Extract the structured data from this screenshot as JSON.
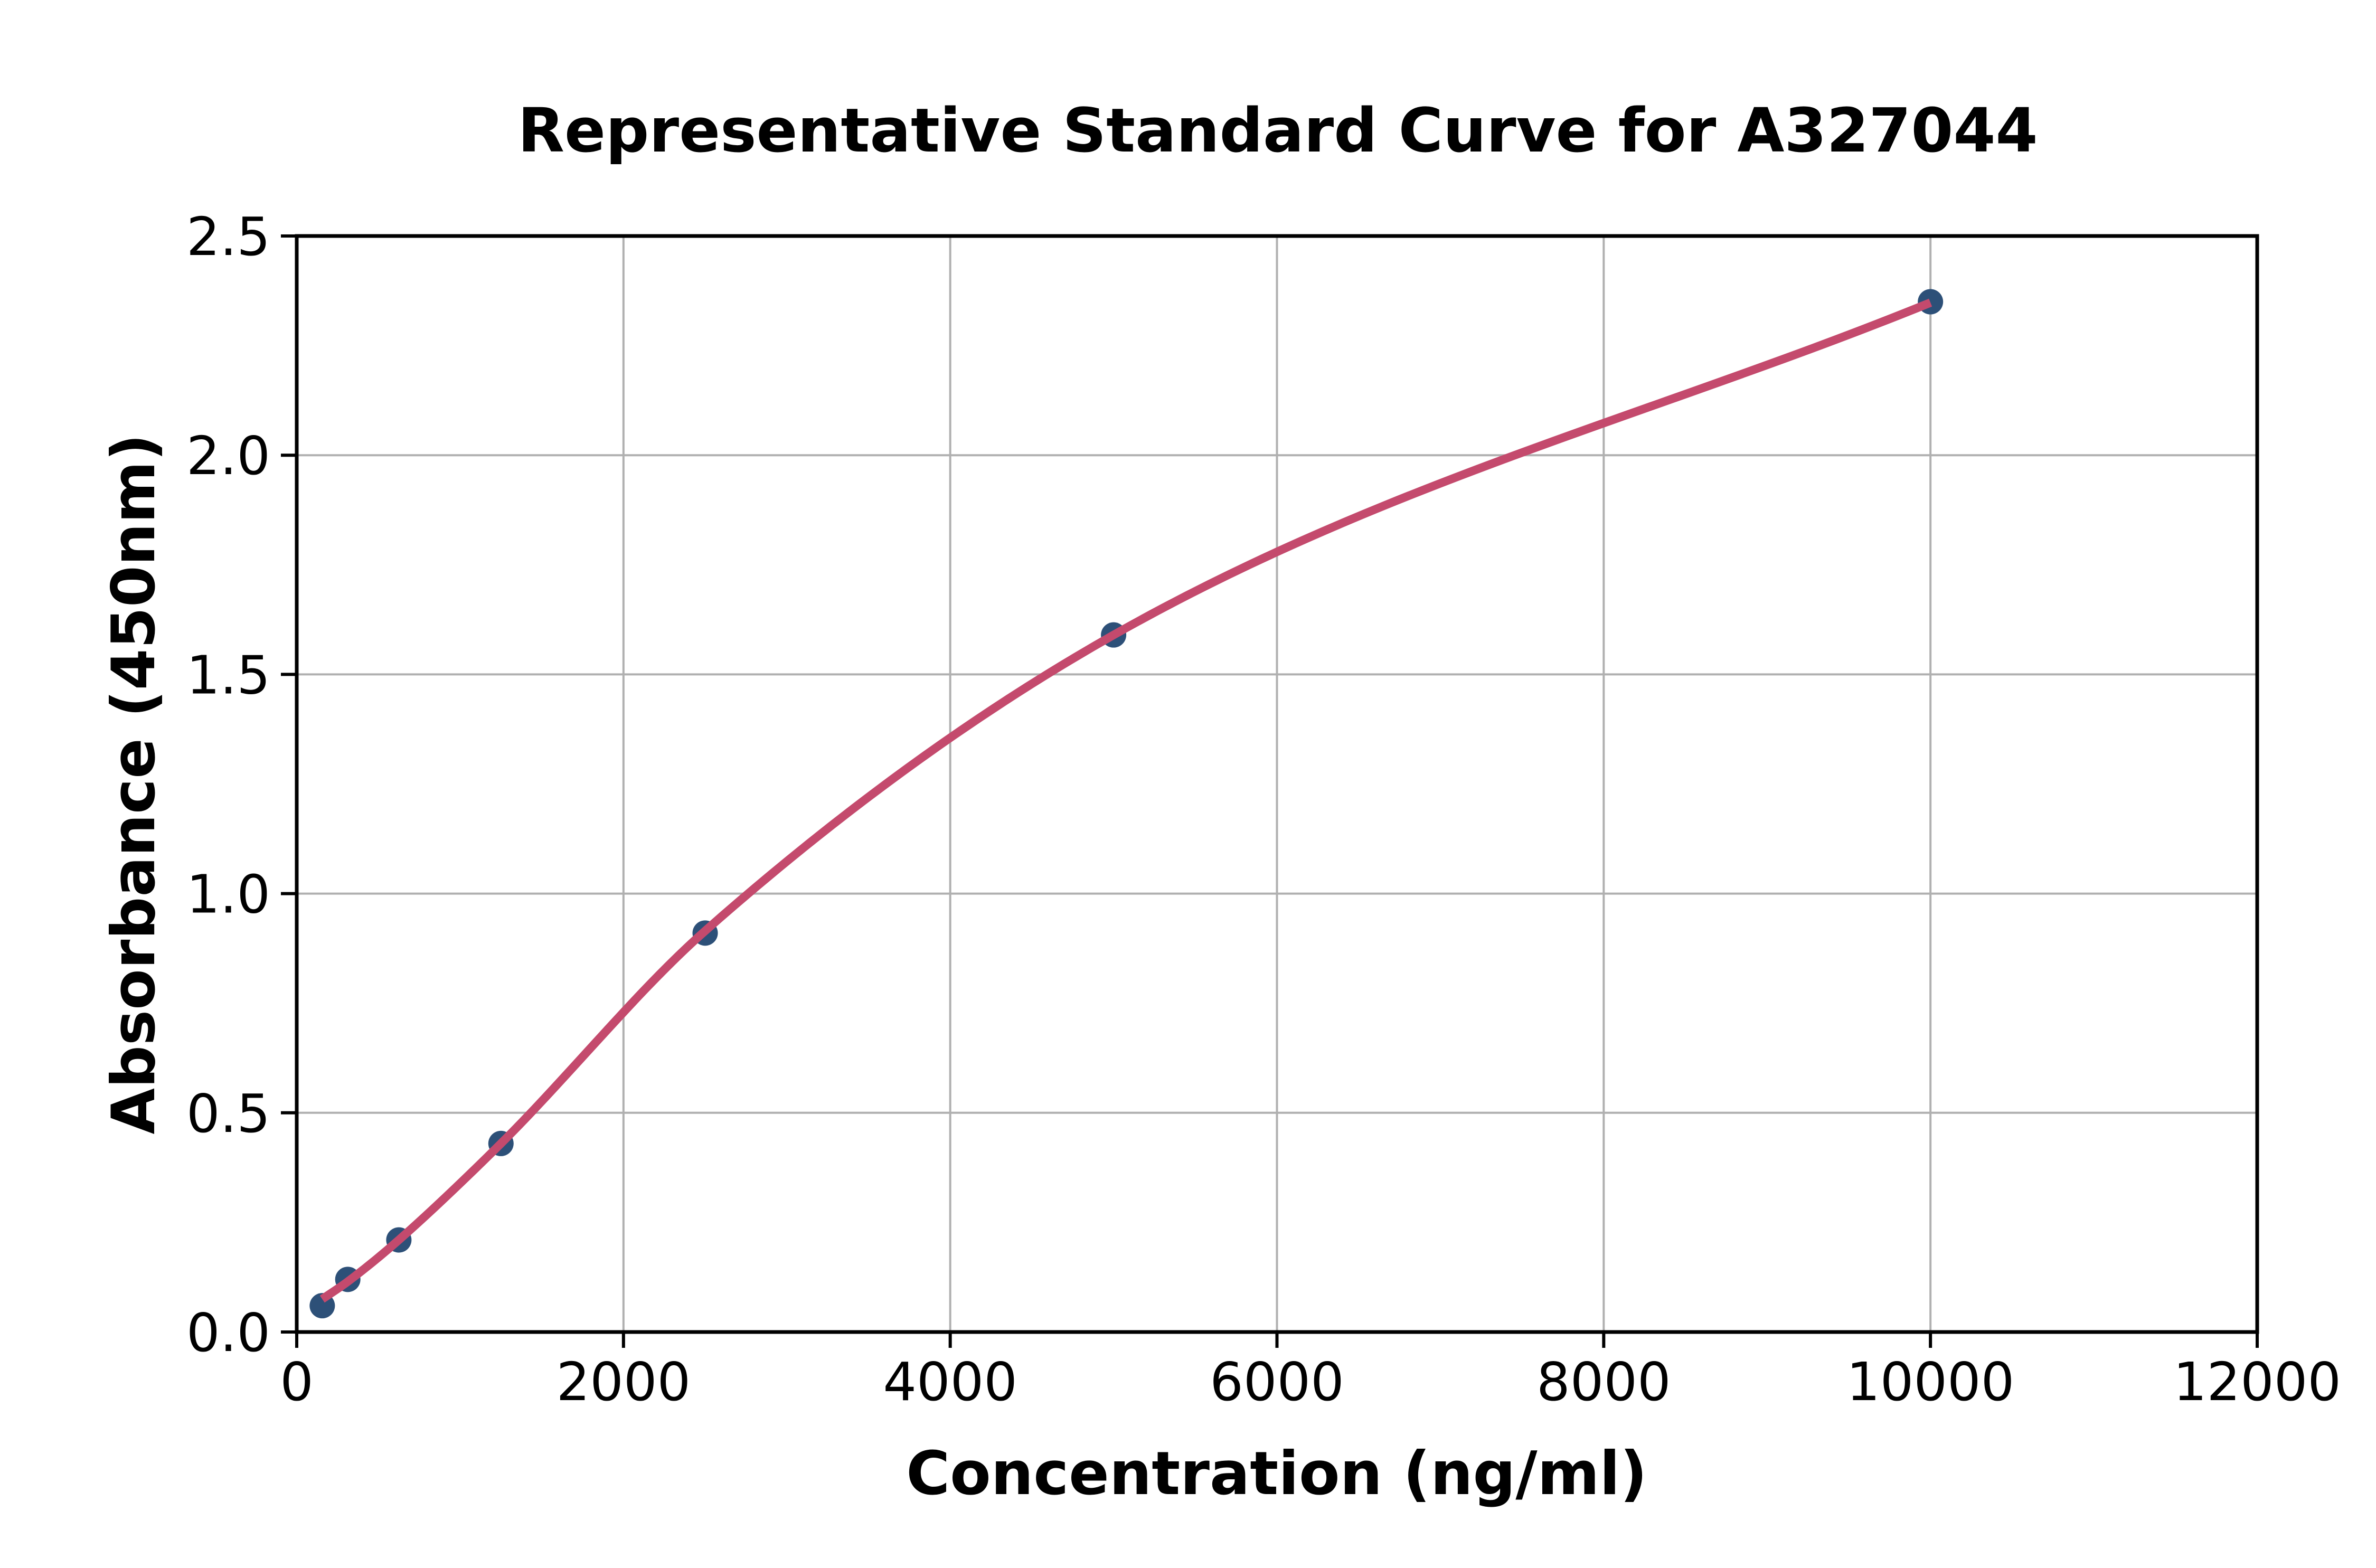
{
  "figure": {
    "background": "#ffffff"
  },
  "chart_data": {
    "type": "scatter",
    "title": "Representative Standard Curve for A327044",
    "xlabel": "Concentration (ng/ml)",
    "ylabel": "Absorbance (450nm)",
    "xlim": [
      0,
      12000
    ],
    "ylim": [
      0,
      2.5
    ],
    "x_ticks": [
      0,
      2000,
      4000,
      6000,
      8000,
      10000,
      12000
    ],
    "x_tick_labels": [
      "0",
      "2000",
      "4000",
      "6000",
      "8000",
      "10000",
      "12000"
    ],
    "y_ticks": [
      0,
      0.5,
      1.0,
      1.5,
      2.0,
      2.5
    ],
    "y_tick_labels": [
      "0.0",
      "0.5",
      "1.0",
      "1.5",
      "2.0",
      "2.5"
    ],
    "grid": true,
    "legend": "none",
    "series": [
      {
        "name": "standard-points",
        "type": "scatter",
        "color": "#2d5078",
        "x": [
          156.25,
          312.5,
          625,
          1250,
          2500,
          5000,
          10000
        ],
        "y": [
          0.06,
          0.12,
          0.21,
          0.43,
          0.91,
          1.59,
          2.35
        ]
      },
      {
        "name": "fit-curve",
        "type": "line",
        "color": "#c44a6d",
        "x": [
          156.25,
          312.5,
          625,
          1250,
          2500,
          5000,
          10000
        ],
        "y": [
          0.075,
          0.115,
          0.21,
          0.43,
          0.915,
          1.59,
          2.348
        ]
      }
    ],
    "colors": {
      "grid": "#b0b0b0",
      "axis": "#000000",
      "marker": "#2d5078",
      "curve": "#c44a6d"
    }
  }
}
